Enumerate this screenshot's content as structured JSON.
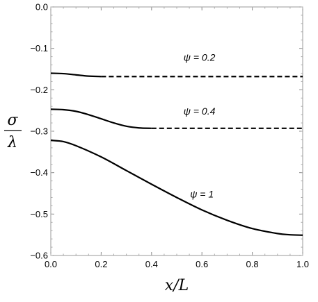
{
  "chart_data": {
    "type": "line",
    "xlabel": "x/L",
    "ylabel_numerator": "σ",
    "ylabel_denominator": "λ",
    "xlim": [
      0.0,
      1.0
    ],
    "ylim": [
      -0.6,
      0.0
    ],
    "x_ticks": [
      0.0,
      0.2,
      0.4,
      0.6,
      0.8,
      1.0
    ],
    "x_tick_labels": [
      "0.0",
      "0.2",
      "0.4",
      "0.6",
      "0.8",
      "1.0"
    ],
    "y_ticks": [
      0.0,
      -0.1,
      -0.2,
      -0.3,
      -0.4,
      -0.5,
      -0.6
    ],
    "y_tick_labels": [
      "0.0",
      "−0.1",
      "−0.2",
      "−0.3",
      "−0.4",
      "−0.5",
      "−0.6"
    ],
    "grid": false,
    "series": [
      {
        "name": "ψ = 0.2",
        "solid": {
          "x": [
            0.0,
            0.05,
            0.1,
            0.15,
            0.2
          ],
          "y": [
            -0.16,
            -0.161,
            -0.164,
            -0.167,
            -0.168
          ]
        },
        "dashed": {
          "x": [
            0.2,
            1.0
          ],
          "y": [
            -0.168,
            -0.168
          ]
        }
      },
      {
        "name": "ψ = 0.4",
        "solid": {
          "x": [
            0.0,
            0.05,
            0.1,
            0.15,
            0.2,
            0.25,
            0.3,
            0.35,
            0.4
          ],
          "y": [
            -0.247,
            -0.248,
            -0.252,
            -0.26,
            -0.27,
            -0.28,
            -0.288,
            -0.292,
            -0.293
          ]
        },
        "dashed": {
          "x": [
            0.4,
            1.0
          ],
          "y": [
            -0.293,
            -0.293
          ]
        }
      },
      {
        "name": "ψ = 1",
        "solid": {
          "x": [
            0.0,
            0.05,
            0.1,
            0.2,
            0.3,
            0.4,
            0.5,
            0.6,
            0.7,
            0.8,
            0.9,
            0.95,
            1.0
          ],
          "y": [
            -0.322,
            -0.325,
            -0.335,
            -0.362,
            -0.395,
            -0.428,
            -0.46,
            -0.49,
            -0.515,
            -0.535,
            -0.547,
            -0.55,
            -0.551
          ]
        }
      }
    ],
    "annotations": [
      {
        "text": "ψ = 0.2",
        "x": 0.59,
        "y": -0.13
      },
      {
        "text": "ψ = 0.4",
        "x": 0.59,
        "y": -0.26
      },
      {
        "text": "ψ = 1",
        "x": 0.6,
        "y": -0.46
      }
    ]
  }
}
